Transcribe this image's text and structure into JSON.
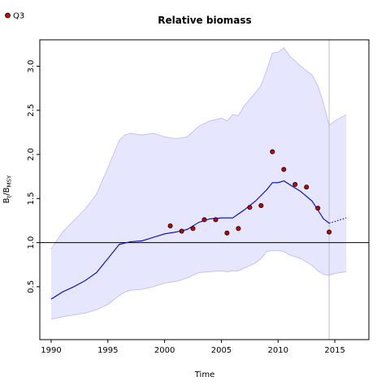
{
  "chart_data": {
    "type": "line",
    "title": "Relative biomass",
    "xlabel": "Time",
    "ylabel": {
      "base": "B",
      "sub_t": "t",
      "slash": "/",
      "base2": "B",
      "sub_msy": "MSY"
    },
    "xlim": [
      1989,
      2018
    ],
    "ylim": [
      -0.1,
      3.3
    ],
    "xticks": [
      1990,
      1995,
      2000,
      2005,
      2010,
      2015
    ],
    "yticks": [
      0.5,
      1.0,
      1.5,
      2.0,
      2.5,
      3.0
    ],
    "reference_line_y": 1.0,
    "vertical_line_x": 2014.5,
    "grid": false,
    "legend": {
      "position": "top-left",
      "entries": [
        "Q3"
      ]
    },
    "colors": {
      "band_fill": "#e6e6ff",
      "band_edge": "#b8b8f5",
      "line": "#0000cc",
      "point_fill": "#cc0000",
      "point_edge": "#000000",
      "vline": "#bfbfbf",
      "refline": "#000000"
    },
    "series": [
      {
        "name": "Q3",
        "kind": "scatter",
        "x": [
          2000.5,
          2001.5,
          2002.5,
          2003.5,
          2004.5,
          2005.5,
          2006.5,
          2007.5,
          2008.5,
          2009.5,
          2010.5,
          2011.5,
          2012.5,
          2013.5,
          2014.5
        ],
        "y": [
          1.19,
          1.13,
          1.16,
          1.26,
          1.26,
          1.11,
          1.16,
          1.4,
          1.42,
          2.03,
          1.83,
          1.66,
          1.63,
          1.39,
          1.12
        ]
      },
      {
        "kind": "line",
        "x": [
          1990,
          1991,
          1992,
          1993,
          1994,
          1995,
          1996,
          1997,
          1998,
          1999,
          2000,
          2001,
          2002,
          2003,
          2004,
          2005,
          2006,
          2007,
          2008,
          2009,
          2009.5,
          2010,
          2010.5,
          2011,
          2012,
          2013,
          2013.5,
          2014,
          2014.5
        ],
        "y": [
          0.36,
          0.44,
          0.5,
          0.57,
          0.66,
          0.82,
          0.98,
          1.01,
          1.02,
          1.06,
          1.1,
          1.12,
          1.15,
          1.23,
          1.27,
          1.28,
          1.28,
          1.37,
          1.47,
          1.6,
          1.68,
          1.68,
          1.7,
          1.66,
          1.58,
          1.47,
          1.37,
          1.27,
          1.22
        ]
      },
      {
        "kind": "line-dotted",
        "x": [
          2014.5,
          2015,
          2015.5,
          2016
        ],
        "y": [
          1.22,
          1.24,
          1.26,
          1.28
        ]
      },
      {
        "kind": "band",
        "x": [
          1990,
          1991,
          1992,
          1993,
          1994,
          1995,
          1996,
          1996.5,
          1997,
          1998,
          1999,
          2000,
          2001,
          2002,
          2003,
          2004,
          2005,
          2005.5,
          2006,
          2006.5,
          2007,
          2008,
          2008.5,
          2009,
          2009.5,
          2010,
          2010.5,
          2011,
          2012,
          2013,
          2013.5,
          2014,
          2014.5,
          2015,
          2016
        ],
        "upper": [
          0.93,
          1.12,
          1.25,
          1.38,
          1.55,
          1.85,
          2.16,
          2.22,
          2.24,
          2.22,
          2.24,
          2.2,
          2.18,
          2.2,
          2.32,
          2.38,
          2.41,
          2.38,
          2.45,
          2.44,
          2.55,
          2.7,
          2.78,
          2.96,
          3.15,
          3.16,
          3.21,
          3.12,
          3.0,
          2.9,
          2.78,
          2.58,
          2.33,
          2.38,
          2.45
        ],
        "lower": [
          0.13,
          0.16,
          0.18,
          0.2,
          0.24,
          0.3,
          0.4,
          0.44,
          0.46,
          0.47,
          0.5,
          0.54,
          0.56,
          0.6,
          0.66,
          0.67,
          0.68,
          0.67,
          0.68,
          0.68,
          0.71,
          0.77,
          0.82,
          0.9,
          0.91,
          0.91,
          0.9,
          0.86,
          0.82,
          0.74,
          0.68,
          0.64,
          0.63,
          0.65,
          0.67
        ]
      }
    ]
  }
}
